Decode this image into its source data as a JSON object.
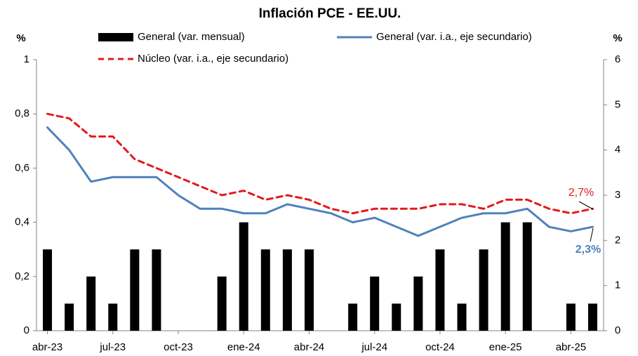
{
  "chart_data": {
    "type": "bar_line",
    "title": "Inflación PCE - EE.UU.",
    "ylabel": "%",
    "y2label": "%",
    "categories": [
      "abr-23",
      null,
      null,
      "jul-23",
      null,
      null,
      "oct-23",
      null,
      null,
      "ene-24",
      null,
      null,
      "abr-24",
      null,
      null,
      "jul-24",
      null,
      null,
      "oct-24",
      null,
      null,
      "ene-25",
      null,
      null,
      "abr-25",
      null
    ],
    "series": [
      {
        "name": "General (var. mensual)",
        "type": "bar",
        "color": "#000000",
        "values": [
          0.3,
          0.1,
          0.2,
          0.1,
          0.3,
          0.3,
          0,
          0,
          0.2,
          0.4,
          0.3,
          0.3,
          0.3,
          0,
          0.1,
          0.2,
          0.1,
          0.2,
          0.3,
          0.1,
          0.3,
          0.4,
          0.4,
          0,
          0.1,
          0.1
        ]
      },
      {
        "name": "General (var. i.a., eje secundario)",
        "type": "line",
        "axis": "y2",
        "color": "#4f81bd",
        "dash": false,
        "values": [
          4.5,
          4.0,
          3.3,
          3.4,
          3.4,
          3.4,
          3.0,
          2.7,
          2.7,
          2.6,
          2.6,
          2.8,
          2.7,
          2.6,
          2.4,
          2.5,
          2.3,
          2.1,
          2.3,
          2.5,
          2.6,
          2.6,
          2.7,
          2.3,
          2.2,
          2.3
        ]
      },
      {
        "name": "Núcleo (var. i.a., eje secundario)",
        "type": "line",
        "axis": "y2",
        "color": "#e31a1c",
        "dash": true,
        "values": [
          4.8,
          4.7,
          4.3,
          4.3,
          3.8,
          3.6,
          3.4,
          3.2,
          3.0,
          3.1,
          2.9,
          3.0,
          2.9,
          2.7,
          2.6,
          2.7,
          2.7,
          2.7,
          2.8,
          2.8,
          2.7,
          2.9,
          2.9,
          2.7,
          2.6,
          2.7
        ]
      }
    ],
    "annotations": [
      {
        "text": "2,7%",
        "color": "#e31a1c"
      },
      {
        "text": "2,3%",
        "color": "#4f81bd"
      }
    ],
    "ylim": [
      0,
      1
    ],
    "yticks": [
      0,
      {
        "value": 0.2,
        "label": "0,2"
      },
      {
        "value": 0.4,
        "label": "0,4"
      },
      {
        "value": 0.6,
        "label": "0,6"
      },
      {
        "value": 0.8,
        "label": "0,8"
      },
      1
    ],
    "y2lim": [
      0,
      6
    ],
    "y2ticks": [
      0,
      1,
      2,
      3,
      4,
      5,
      6
    ]
  }
}
